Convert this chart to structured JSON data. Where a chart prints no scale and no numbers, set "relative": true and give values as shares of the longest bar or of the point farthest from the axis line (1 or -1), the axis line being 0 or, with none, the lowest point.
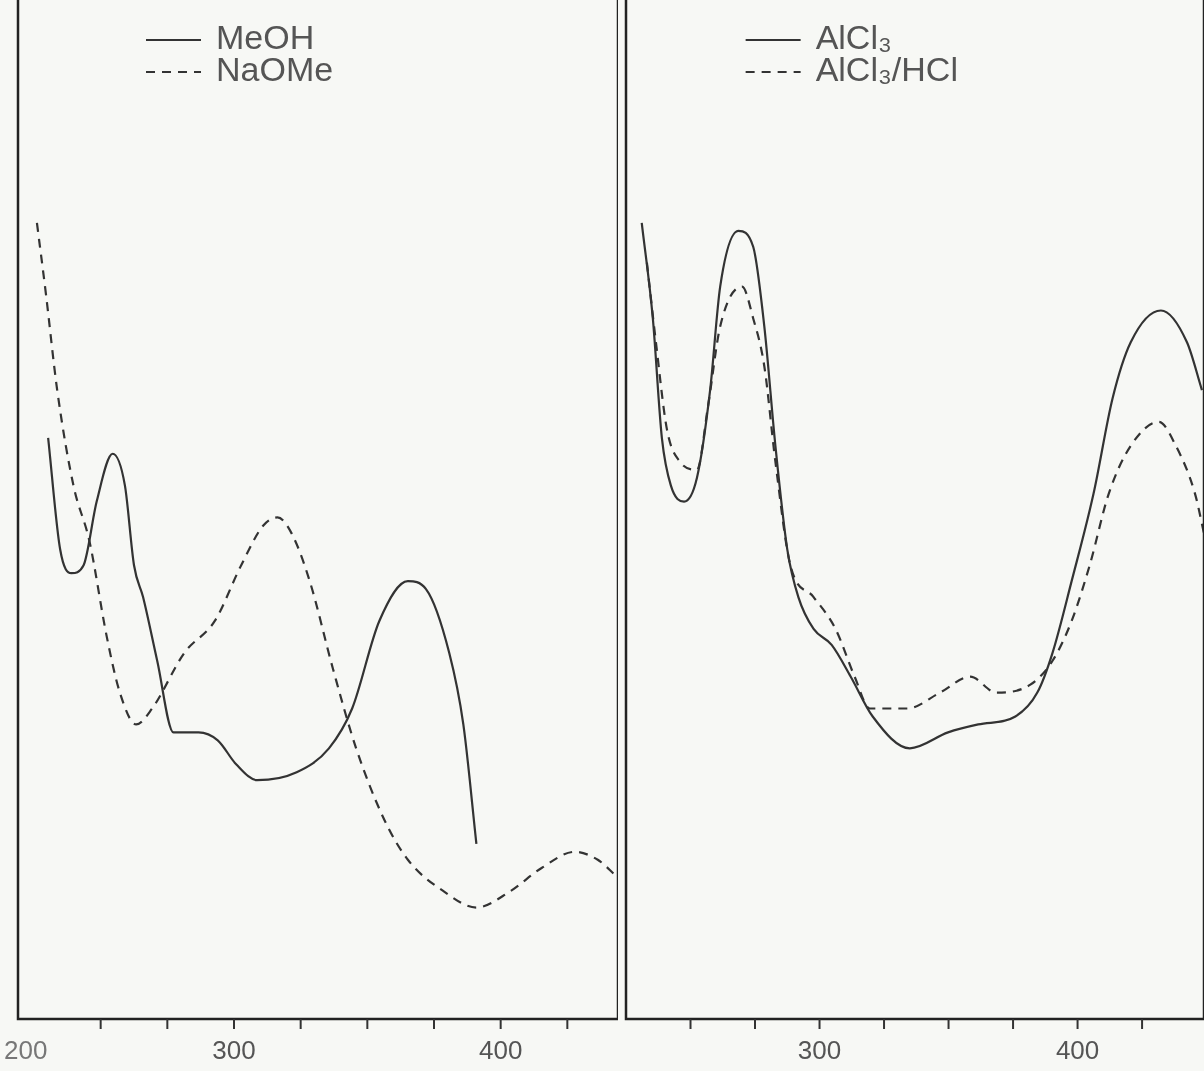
{
  "chart_data": [
    {
      "type": "line",
      "relative": true,
      "xlim": [
        219,
        444
      ],
      "xticks": [
        {
          "value": 250,
          "label": null
        },
        {
          "value": 275,
          "label": null
        },
        {
          "value": 300,
          "label": "300"
        },
        {
          "value": 325,
          "label": null
        },
        {
          "value": 350,
          "label": null
        },
        {
          "value": 375,
          "label": null
        },
        {
          "value": 400,
          "label": "400"
        },
        {
          "value": 425,
          "label": null
        }
      ],
      "grid": false,
      "legend": "top",
      "annotations": [
        "200"
      ],
      "series": [
        {
          "name": "MeOH",
          "color": "#333333",
          "line_style": "solid",
          "x": [
            230.3,
            234.8,
            239.0,
            243.6,
            248.5,
            254.5,
            259.1,
            262.5,
            265.9,
            271.2,
            277.3,
            286.7,
            293.9,
            300.8,
            308.7,
            323.5,
            335.6,
            344.3,
            354.5,
            365.2,
            372.0,
            380.7,
            386.0,
            390.9
          ],
          "values": [
            0.73,
            0.59,
            0.56,
            0.57,
            0.65,
            0.71,
            0.67,
            0.57,
            0.53,
            0.45,
            0.36,
            0.36,
            0.35,
            0.32,
            0.3,
            0.31,
            0.34,
            0.39,
            0.5,
            0.55,
            0.54,
            0.46,
            0.37,
            0.22
          ]
        },
        {
          "name": "NaOMe",
          "color": "#333333",
          "line_style": "dashed",
          "x": [
            226.1,
            229.5,
            233.7,
            239.8,
            245.8,
            252.3,
            257.2,
            263.3,
            269.3,
            281.4,
            292.8,
            302.7,
            311.0,
            316.3,
            321.6,
            328.4,
            337.1,
            345.8,
            356.4,
            365.2,
            378.8,
            390.9,
            403.4,
            415.5,
            427.7,
            436.4,
            443.2
          ],
          "values": [
            1.0,
            0.91,
            0.79,
            0.67,
            0.6,
            0.48,
            0.41,
            0.37,
            0.39,
            0.46,
            0.5,
            0.57,
            0.62,
            0.63,
            0.61,
            0.55,
            0.44,
            0.34,
            0.25,
            0.2,
            0.16,
            0.14,
            0.16,
            0.19,
            0.21,
            0.2,
            0.18
          ]
        }
      ]
    },
    {
      "type": "line",
      "relative": true,
      "xlim": [
        225,
        449
      ],
      "xticks": [
        {
          "value": 250,
          "label": null
        },
        {
          "value": 275,
          "label": null
        },
        {
          "value": 300,
          "label": "300"
        },
        {
          "value": 325,
          "label": null
        },
        {
          "value": 350,
          "label": null
        },
        {
          "value": 375,
          "label": null
        },
        {
          "value": 400,
          "label": "400"
        },
        {
          "value": 425,
          "label": null
        }
      ],
      "grid": false,
      "legend": "top",
      "series": [
        {
          "name": "AlCl₃",
          "color": "#333333",
          "line_style": "solid",
          "x": [
            231.1,
            235.4,
            238.9,
            242.4,
            247.5,
            252.5,
            257.6,
            261.5,
            268.5,
            274.3,
            278.6,
            282.9,
            287.5,
            291.8,
            297.7,
            304.7,
            312.1,
            320.6,
            335.0,
            349.8,
            361.5,
            375.9,
            384.4,
            390.3,
            397.7,
            406.2,
            413.6,
            420.6,
            432.3,
            442.4,
            448.2
          ],
          "values": [
            1.0,
            0.88,
            0.73,
            0.67,
            0.65,
            0.68,
            0.79,
            0.92,
            0.99,
            0.97,
            0.87,
            0.72,
            0.59,
            0.53,
            0.49,
            0.47,
            0.43,
            0.38,
            0.34,
            0.36,
            0.37,
            0.38,
            0.41,
            0.46,
            0.55,
            0.66,
            0.78,
            0.85,
            0.89,
            0.85,
            0.79
          ]
        },
        {
          "name": "AlCl₃/HCl",
          "color": "#333333",
          "line_style": "dashed",
          "x": [
            233.1,
            236.6,
            240.9,
            245.9,
            252.5,
            256.8,
            261.5,
            270.0,
            274.3,
            278.6,
            282.9,
            288.7,
            297.7,
            306.2,
            313.6,
            319.5,
            333.9,
            346.7,
            358.4,
            368.5,
            381.7,
            390.3,
            397.7,
            404.7,
            412.1,
            420.6,
            431.5,
            438.1,
            445.5,
            449.0
          ],
          "values": [
            0.95,
            0.85,
            0.74,
            0.7,
            0.69,
            0.77,
            0.87,
            0.92,
            0.88,
            0.82,
            0.7,
            0.57,
            0.53,
            0.49,
            0.43,
            0.39,
            0.39,
            0.41,
            0.43,
            0.41,
            0.42,
            0.45,
            0.5,
            0.57,
            0.66,
            0.72,
            0.75,
            0.72,
            0.66,
            0.61
          ]
        }
      ]
    }
  ]
}
